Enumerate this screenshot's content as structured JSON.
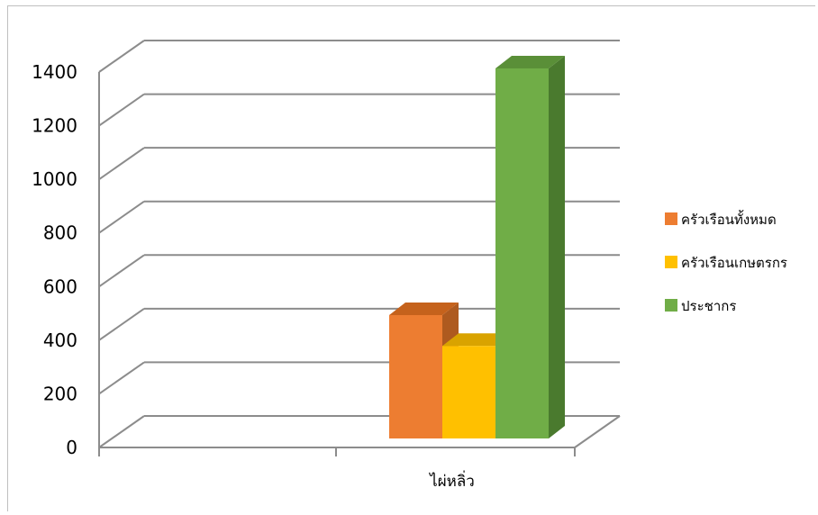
{
  "chart_data": {
    "type": "bar",
    "style": "3d-clustered-column",
    "categories": [
      "ไผ่หลิ่ว"
    ],
    "series": [
      {
        "name": "ครัวเรือนทั้งหมด",
        "values": [
          460
        ],
        "color": "#ED7D31",
        "side_color": "#AE5A1F",
        "top_color": "#C5621C"
      },
      {
        "name": "ครัวเรือนเกษตรกร",
        "values": [
          345
        ],
        "color": "#FFC000",
        "side_color": "#BF9000",
        "top_color": "#D9A300"
      },
      {
        "name": "ประชากร",
        "values": [
          1380
        ],
        "color": "#70AD47",
        "side_color": "#4A7A2E",
        "top_color": "#5A8F38"
      }
    ],
    "yticks": [
      "0",
      "200",
      "400",
      "600",
      "800",
      "1000",
      "1200",
      "1400"
    ],
    "ylim": [
      0,
      1400
    ],
    "grid": true,
    "legend_position": "right",
    "title": "",
    "xlabel": "",
    "ylabel": ""
  }
}
